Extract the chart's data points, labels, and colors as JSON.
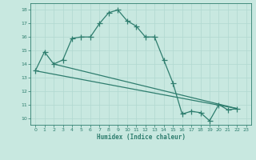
{
  "line1_x": [
    0,
    1,
    2,
    3,
    4,
    5,
    6,
    7,
    8,
    9,
    10,
    11,
    12,
    13,
    14,
    15,
    16,
    17,
    18,
    19,
    20,
    21,
    22
  ],
  "line1_y": [
    13.5,
    14.9,
    14.0,
    14.3,
    15.9,
    16.0,
    16.0,
    17.0,
    17.8,
    18.0,
    17.2,
    16.8,
    16.0,
    16.0,
    14.3,
    12.6,
    10.3,
    10.5,
    10.4,
    9.8,
    11.0,
    10.6,
    10.7
  ],
  "line3_x": [
    0,
    22
  ],
  "line3_y": [
    13.5,
    10.7
  ],
  "line4_x": [
    2,
    22
  ],
  "line4_y": [
    14.0,
    10.7
  ],
  "color": "#2e7d6e",
  "bg_color": "#c8e8e0",
  "grid_color": "#b0d8d0",
  "xlabel": "Humidex (Indice chaleur)",
  "ylim": [
    9.5,
    18.5
  ],
  "xlim": [
    -0.5,
    23.5
  ],
  "yticks": [
    10,
    11,
    12,
    13,
    14,
    15,
    16,
    17,
    18
  ],
  "xticks": [
    0,
    1,
    2,
    3,
    4,
    5,
    6,
    7,
    8,
    9,
    10,
    11,
    12,
    13,
    14,
    15,
    16,
    17,
    18,
    19,
    20,
    21,
    22,
    23
  ]
}
